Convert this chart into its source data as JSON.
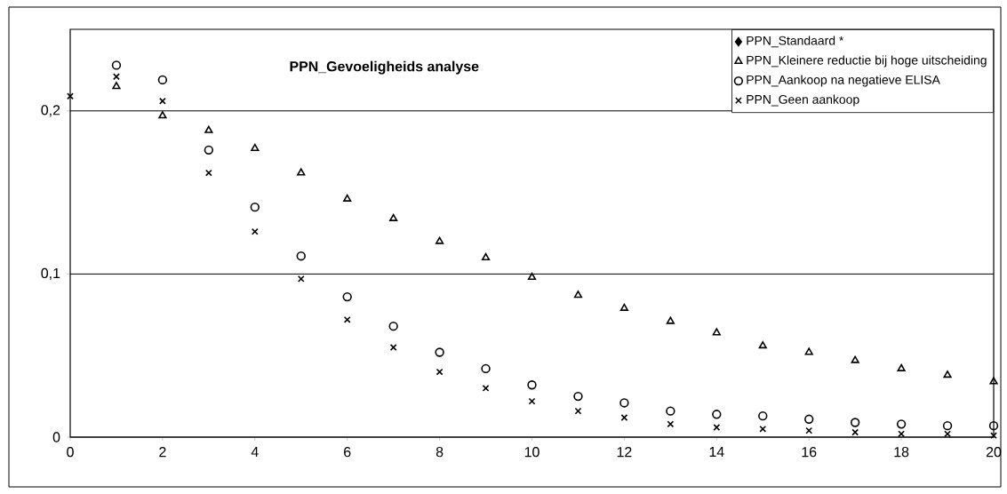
{
  "chart_data": {
    "type": "scatter",
    "title": "PPN_Gevoeligheids analyse",
    "x": [
      0,
      1,
      2,
      3,
      4,
      5,
      6,
      7,
      8,
      9,
      10,
      11,
      12,
      13,
      14,
      15,
      16,
      17,
      18,
      19,
      20
    ],
    "series": [
      {
        "name": "PPN_Standaard *",
        "color": "#000000",
        "marker": "diamond",
        "values": [
          null,
          null,
          null,
          null,
          null,
          null,
          null,
          null,
          null,
          null,
          null,
          null,
          null,
          null,
          null,
          null,
          null,
          null,
          null,
          null,
          null
        ]
      },
      {
        "name": "PPN_Kleinere reductie bij hoge uitscheiding",
        "color": "#000000",
        "marker": "triangle",
        "values": [
          null,
          0.215,
          0.197,
          0.188,
          0.177,
          0.162,
          0.146,
          0.134,
          0.12,
          0.11,
          0.098,
          0.087,
          0.079,
          0.071,
          0.064,
          0.056,
          0.052,
          0.047,
          0.042,
          0.038,
          0.034
        ]
      },
      {
        "name": "PPN_Aankoop na negatieve ELISA",
        "color": "#000000",
        "marker": "circle",
        "values": [
          null,
          0.228,
          0.219,
          0.176,
          0.141,
          0.111,
          0.086,
          0.068,
          0.052,
          0.042,
          0.032,
          0.025,
          0.021,
          0.016,
          0.014,
          0.013,
          0.011,
          0.009,
          0.008,
          0.007,
          0.007
        ]
      },
      {
        "name": "PPN_Geen aankoop",
        "color": "#000000",
        "marker": "cross",
        "values": [
          0.209,
          0.221,
          0.206,
          0.162,
          0.126,
          0.097,
          0.072,
          0.055,
          0.04,
          0.03,
          0.022,
          0.016,
          0.012,
          0.008,
          0.006,
          0.005,
          0.004,
          0.003,
          0.002,
          0.002,
          0.001
        ]
      }
    ],
    "xlim": [
      0,
      20
    ],
    "ylim": [
      0,
      0.25
    ],
    "xticks": [
      0,
      2,
      4,
      6,
      8,
      10,
      12,
      14,
      16,
      18,
      20
    ],
    "yticks": [
      {
        "value": 0,
        "label": "0"
      },
      {
        "value": 0.1,
        "label": "0,1"
      },
      {
        "value": 0.2,
        "label": "0,2"
      }
    ],
    "grid": "y",
    "legend": "top right"
  }
}
